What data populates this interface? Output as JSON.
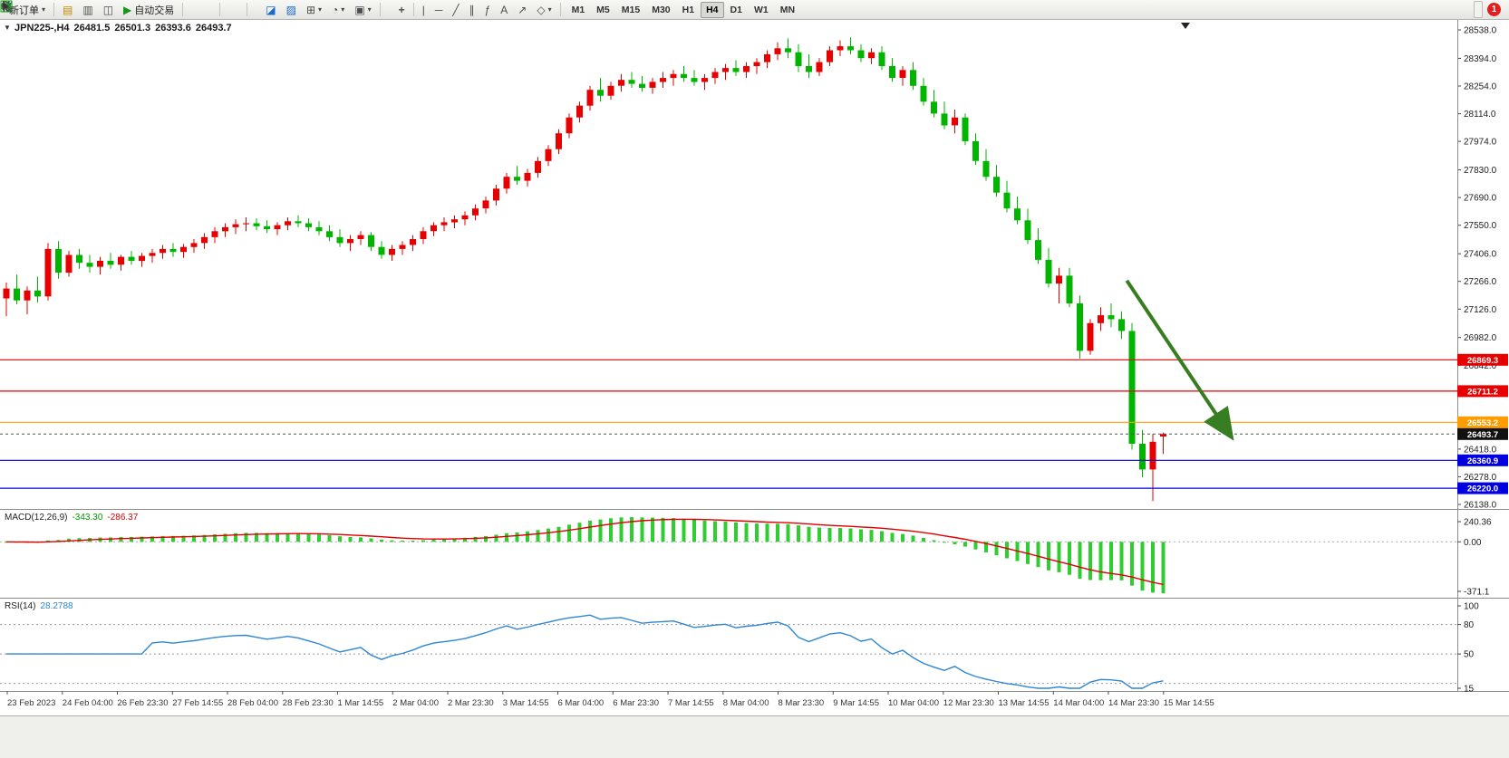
{
  "toolbar": {
    "new_order": "新订单",
    "auto_trading": "自动交易",
    "timeframes": [
      "M1",
      "M5",
      "M15",
      "M30",
      "H1",
      "H4",
      "D1",
      "W1",
      "MN"
    ],
    "active_timeframe": "H4",
    "notification_count": "1"
  },
  "icons": {
    "dropdown_caret": "▾",
    "profiles": "▤",
    "print": "▥",
    "data_window": "◫",
    "auto_trading_play": "▶",
    "indicator_window": "◪",
    "template": "▨",
    "new_chart": "⊞",
    "period_clock": "◔",
    "screenshot": "▣",
    "crosshair": "+",
    "vline": "|",
    "hline": "─",
    "trendline": "╱",
    "channel": "∥",
    "fibonacci": "ƒ",
    "text_tool": "A",
    "arrows_tool": "↗",
    "shapes_tool": "◇",
    "one_click": "▼",
    "shift_marker": "▼"
  },
  "chart_header": {
    "symbol": "JPN225-,H4",
    "open": "26481.5",
    "high": "26501.3",
    "low": "26393.6",
    "close": "26493.7"
  },
  "indicators": {
    "macd": {
      "name": "MACD(12,26,9)",
      "main_value": "-343.30",
      "signal_value": "-286.37"
    },
    "rsi": {
      "name": "RSI(14)",
      "value": "28.2788"
    }
  },
  "chart_data": [
    {
      "type": "candlestick",
      "title": "JPN225-,H4",
      "timeframe": "H4",
      "ylim": [
        26138.0,
        28538.0
      ],
      "up_color": "#e60000",
      "down_color": "#00b400",
      "y_ticks": [
        "28538.0",
        "28394.0",
        "28254.0",
        "28114.0",
        "27974.0",
        "27830.0",
        "27690.0",
        "27550.0",
        "27406.0",
        "27266.0",
        "27126.0",
        "26982.0",
        "26842.0",
        "26418.0",
        "26278.0",
        "26138.0"
      ],
      "x_labels": [
        "23 Feb 2023",
        "24 Feb 04:00",
        "26 Feb 23:30",
        "27 Feb 14:55",
        "28 Feb 04:00",
        "28 Feb 23:30",
        "1 Mar 14:55",
        "2 Mar 04:00",
        "2 Mar 23:30",
        "3 Mar 14:55",
        "6 Mar 04:00",
        "6 Mar 23:30",
        "7 Mar 14:55",
        "8 Mar 04:00",
        "8 Mar 23:30",
        "9 Mar 14:55",
        "10 Mar 04:00",
        "12 Mar 23:30",
        "13 Mar 14:55",
        "14 Mar 04:00",
        "14 Mar 23:30",
        "15 Mar 14:55"
      ],
      "hlines": [
        {
          "value": 26869.3,
          "label": "26869.3",
          "color": "#e80000"
        },
        {
          "value": 26711.2,
          "label": "26711.2",
          "color": "#e80000"
        },
        {
          "value": 26553.2,
          "label": "26553.2",
          "color": "#ff9c00"
        },
        {
          "value": 26360.9,
          "label": "26360.9",
          "color": "#0000e0"
        },
        {
          "value": 26220.0,
          "label": "26220.0",
          "color": "#0000e0"
        }
      ],
      "bid": {
        "value": 26493.7,
        "label": "26493.7",
        "color": "#111111"
      },
      "annotation_arrow": {
        "color": "#377d22",
        "from": {
          "index": 107.5,
          "price": 27270
        },
        "to": {
          "index": 117.4,
          "price": 26490
        }
      },
      "candles": [
        [
          27180,
          27260,
          27090,
          27230
        ],
        [
          27230,
          27300,
          27150,
          27170
        ],
        [
          27170,
          27240,
          27100,
          27220
        ],
        [
          27220,
          27290,
          27160,
          27190
        ],
        [
          27190,
          27460,
          27170,
          27430
        ],
        [
          27430,
          27470,
          27280,
          27310
        ],
        [
          27310,
          27420,
          27290,
          27400
        ],
        [
          27400,
          27430,
          27330,
          27360
        ],
        [
          27360,
          27400,
          27310,
          27340
        ],
        [
          27340,
          27390,
          27300,
          27370
        ],
        [
          27370,
          27410,
          27330,
          27350
        ],
        [
          27350,
          27400,
          27320,
          27390
        ],
        [
          27390,
          27420,
          27350,
          27370
        ],
        [
          27370,
          27410,
          27340,
          27395
        ],
        [
          27395,
          27430,
          27360,
          27410
        ],
        [
          27410,
          27450,
          27380,
          27430
        ],
        [
          27430,
          27460,
          27390,
          27415
        ],
        [
          27415,
          27455,
          27385,
          27440
        ],
        [
          27440,
          27480,
          27410,
          27460
        ],
        [
          27460,
          27510,
          27430,
          27490
        ],
        [
          27490,
          27540,
          27460,
          27520
        ],
        [
          27520,
          27560,
          27490,
          27540
        ],
        [
          27540,
          27580,
          27505,
          27555
        ],
        [
          27555,
          27590,
          27520,
          27560
        ],
        [
          27560,
          27585,
          27525,
          27545
        ],
        [
          27545,
          27575,
          27510,
          27530
        ],
        [
          27530,
          27565,
          27500,
          27550
        ],
        [
          27550,
          27590,
          27525,
          27570
        ],
        [
          27570,
          27600,
          27540,
          27560
        ],
        [
          27560,
          27585,
          27520,
          27540
        ],
        [
          27540,
          27570,
          27500,
          27520
        ],
        [
          27520,
          27550,
          27470,
          27490
        ],
        [
          27490,
          27530,
          27440,
          27460
        ],
        [
          27460,
          27500,
          27420,
          27480
        ],
        [
          27480,
          27520,
          27450,
          27500
        ],
        [
          27500,
          27515,
          27420,
          27440
        ],
        [
          27440,
          27470,
          27380,
          27400
        ],
        [
          27400,
          27450,
          27370,
          27430
        ],
        [
          27430,
          27470,
          27400,
          27450
        ],
        [
          27450,
          27500,
          27420,
          27480
        ],
        [
          27480,
          27540,
          27455,
          27520
        ],
        [
          27520,
          27565,
          27495,
          27550
        ],
        [
          27550,
          27590,
          27520,
          27565
        ],
        [
          27565,
          27600,
          27535,
          27580
        ],
        [
          27580,
          27620,
          27550,
          27600
        ],
        [
          27600,
          27655,
          27575,
          27635
        ],
        [
          27635,
          27695,
          27610,
          27675
        ],
        [
          27675,
          27755,
          27650,
          27735
        ],
        [
          27735,
          27815,
          27710,
          27795
        ],
        [
          27795,
          27850,
          27755,
          27775
        ],
        [
          27775,
          27835,
          27745,
          27815
        ],
        [
          27815,
          27895,
          27790,
          27875
        ],
        [
          27875,
          27955,
          27850,
          27935
        ],
        [
          27935,
          28035,
          27910,
          28015
        ],
        [
          28015,
          28115,
          27990,
          28095
        ],
        [
          28095,
          28175,
          28070,
          28155
        ],
        [
          28155,
          28255,
          28130,
          28235
        ],
        [
          28235,
          28295,
          28175,
          28205
        ],
        [
          28205,
          28275,
          28185,
          28255
        ],
        [
          28255,
          28315,
          28225,
          28285
        ],
        [
          28285,
          28325,
          28245,
          28265
        ],
        [
          28265,
          28305,
          28225,
          28245
        ],
        [
          28245,
          28295,
          28215,
          28275
        ],
        [
          28275,
          28325,
          28245,
          28295
        ],
        [
          28295,
          28335,
          28255,
          28315
        ],
        [
          28315,
          28355,
          28275,
          28295
        ],
        [
          28295,
          28335,
          28255,
          28275
        ],
        [
          28275,
          28315,
          28235,
          28295
        ],
        [
          28295,
          28345,
          28265,
          28325
        ],
        [
          28325,
          28365,
          28285,
          28345
        ],
        [
          28345,
          28385,
          28305,
          28325
        ],
        [
          28325,
          28375,
          28295,
          28355
        ],
        [
          28355,
          28395,
          28315,
          28375
        ],
        [
          28375,
          28435,
          28345,
          28415
        ],
        [
          28415,
          28475,
          28385,
          28445
        ],
        [
          28445,
          28495,
          28395,
          28425
        ],
        [
          28425,
          28465,
          28325,
          28355
        ],
        [
          28355,
          28415,
          28295,
          28325
        ],
        [
          28325,
          28395,
          28305,
          28375
        ],
        [
          28375,
          28455,
          28355,
          28435
        ],
        [
          28435,
          28485,
          28405,
          28455
        ],
        [
          28455,
          28500,
          28415,
          28435
        ],
        [
          28435,
          28465,
          28375,
          28395
        ],
        [
          28395,
          28445,
          28365,
          28425
        ],
        [
          28425,
          28455,
          28335,
          28355
        ],
        [
          28355,
          28395,
          28275,
          28295
        ],
        [
          28295,
          28355,
          28255,
          28335
        ],
        [
          28335,
          28375,
          28235,
          28255
        ],
        [
          28255,
          28295,
          28155,
          28175
        ],
        [
          28175,
          28235,
          28095,
          28115
        ],
        [
          28115,
          28175,
          28035,
          28055
        ],
        [
          28055,
          28135,
          28015,
          28095
        ],
        [
          28095,
          28115,
          27955,
          27975
        ],
        [
          27975,
          28015,
          27855,
          27875
        ],
        [
          27875,
          27935,
          27775,
          27795
        ],
        [
          27795,
          27855,
          27695,
          27715
        ],
        [
          27715,
          27775,
          27615,
          27635
        ],
        [
          27635,
          27695,
          27555,
          27575
        ],
        [
          27575,
          27635,
          27455,
          27475
        ],
        [
          27475,
          27535,
          27355,
          27375
        ],
        [
          27375,
          27435,
          27235,
          27255
        ],
        [
          27255,
          27335,
          27155,
          27295
        ],
        [
          27295,
          27335,
          27135,
          27155
        ],
        [
          27155,
          27195,
          26875,
          26915
        ],
        [
          26915,
          27075,
          26895,
          27055
        ],
        [
          27055,
          27135,
          27015,
          27095
        ],
        [
          27095,
          27155,
          27035,
          27075
        ],
        [
          27075,
          27115,
          26975,
          27015
        ],
        [
          27015,
          27055,
          26415,
          26445
        ],
        [
          26445,
          26515,
          26275,
          26315
        ],
        [
          26315,
          26495,
          26155,
          26455
        ],
        [
          26481.5,
          26501.3,
          26393.6,
          26493.7
        ]
      ]
    },
    {
      "type": "bar",
      "name": "MACD",
      "label": "MACD(12,26,9)",
      "params": {
        "fast": 12,
        "slow": 26,
        "signal": 9
      },
      "values": {
        "main": -343.3,
        "signal": -286.37
      },
      "y_ticks": [
        "240.36",
        "0.00",
        "-371.1"
      ],
      "histogram_color": "#2fcd2f",
      "signal_color": "#e00000",
      "source": "derived from candles closes"
    },
    {
      "type": "line",
      "name": "RSI",
      "label": "RSI(14)",
      "period": 14,
      "value": 28.2788,
      "levels": [
        80,
        50,
        20
      ],
      "y_ticks": [
        "100",
        "80",
        "50",
        "15"
      ],
      "ylim": [
        15,
        100
      ],
      "color": "#2e86d4",
      "source": "derived from candles closes"
    }
  ]
}
